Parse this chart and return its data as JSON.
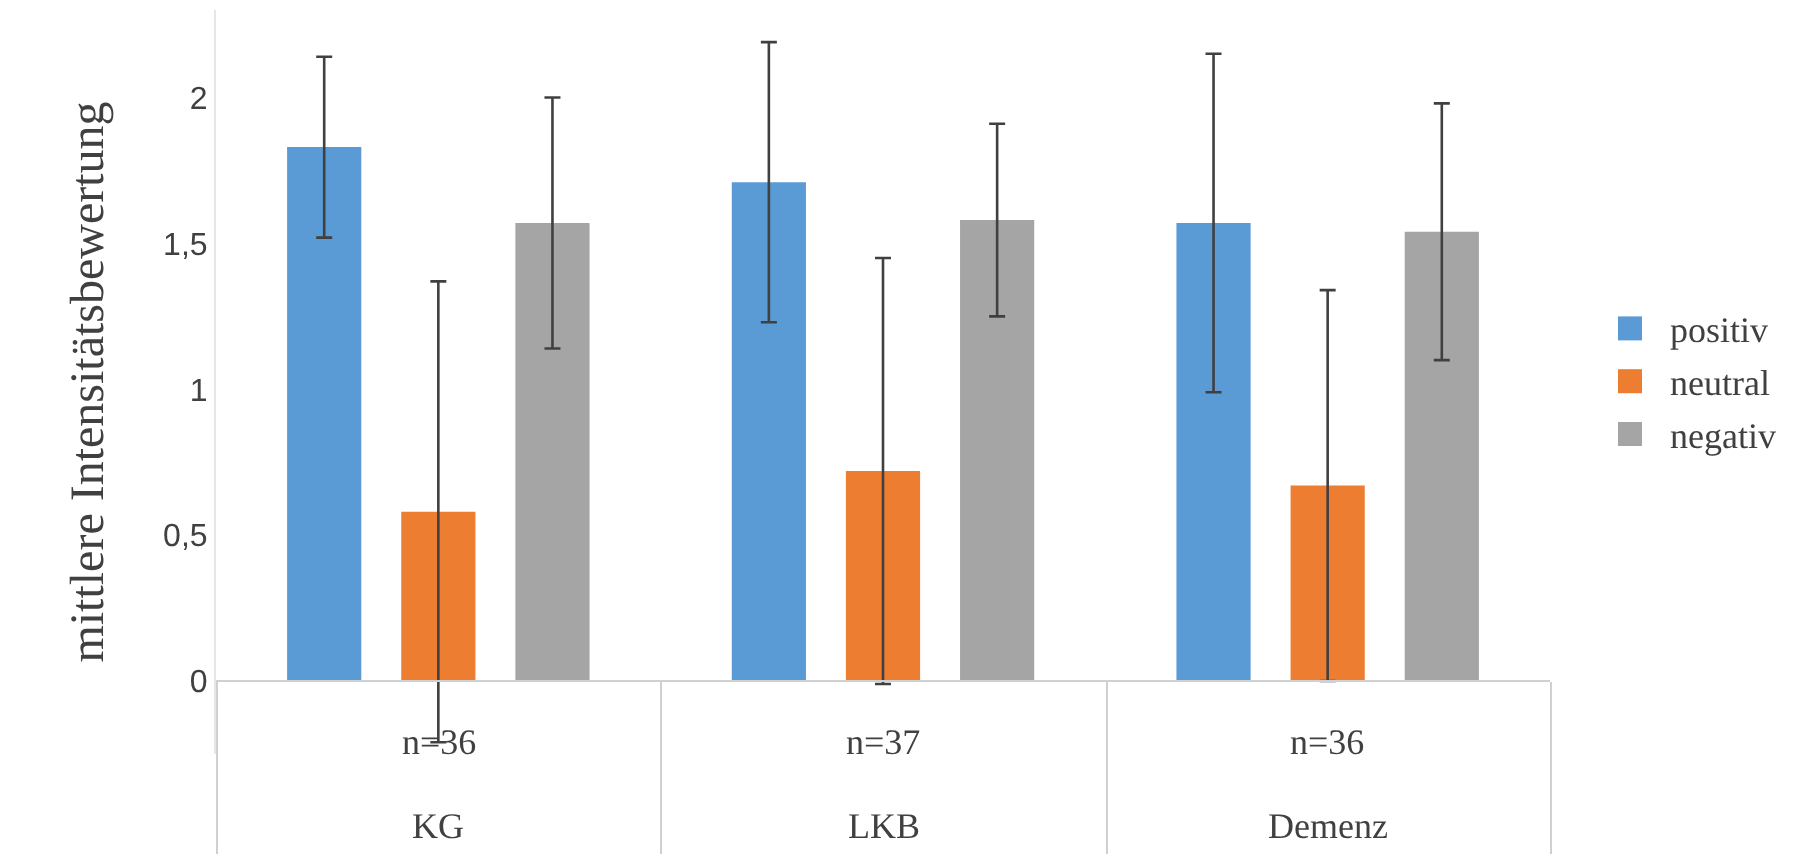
{
  "chart_data": {
    "type": "bar",
    "ylabel": "mittlere Intensitätsbewertung",
    "categories": [
      "KG",
      "LKB",
      "Demenz"
    ],
    "series": [
      {
        "name": "positiv",
        "color": "#5b9bd5",
        "values": [
          1.83,
          1.71,
          1.57
        ],
        "errors": [
          0.31,
          0.48,
          0.58
        ]
      },
      {
        "name": "neutral",
        "color": "#ed7d31",
        "values": [
          0.58,
          0.72,
          0.67
        ],
        "errors": [
          0.79,
          0.73,
          0.67
        ]
      },
      {
        "name": "negativ",
        "color": "#a5a5a5",
        "values": [
          1.57,
          1.58,
          1.54
        ],
        "errors": [
          0.43,
          0.33,
          0.44
        ]
      }
    ],
    "ylim": [
      -0.25,
      2.3
    ],
    "yticks": [
      0,
      {
        "value": 0.5,
        "label": "0,5"
      },
      1,
      {
        "value": 1.5,
        "label": "1,5"
      },
      2
    ],
    "annotations": [
      "n=36",
      "n=37",
      "n=36"
    ],
    "ref_lines": [
      {
        "axis": "y",
        "value": 0,
        "color": "#d0d0d0"
      }
    ],
    "grid": false,
    "legend": "right"
  }
}
